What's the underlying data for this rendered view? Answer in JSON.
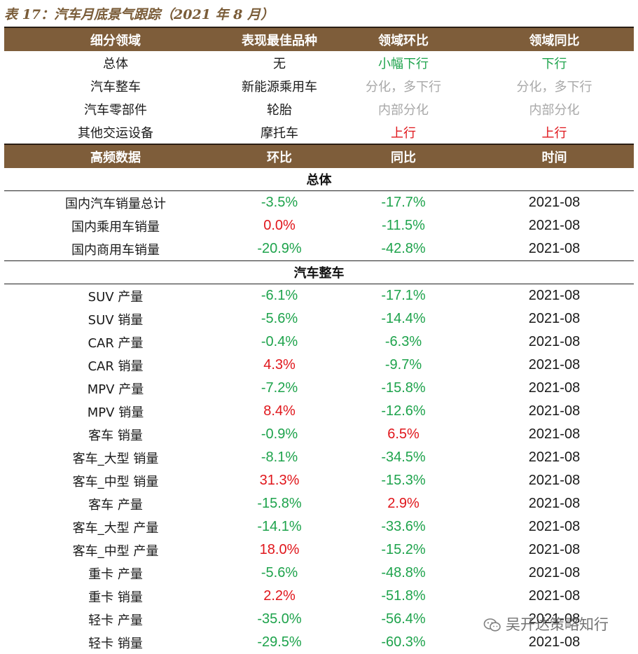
{
  "title": "表 17：汽车月底景气跟踪（2021 年 8 月）",
  "header1": [
    "细分领域",
    "表现最佳品种",
    "领域环比",
    "领域同比"
  ],
  "domains": [
    {
      "name": "总体",
      "best": "无",
      "mom": "小幅下行",
      "mom_color": "green",
      "yoy": "下行",
      "yoy_color": "green"
    },
    {
      "name": "汽车整车",
      "best": "新能源乘用车",
      "mom": "分化，多下行",
      "mom_color": "grey",
      "yoy": "分化，多下行",
      "yoy_color": "grey"
    },
    {
      "name": "汽车零部件",
      "best": "轮胎",
      "mom": "内部分化",
      "mom_color": "grey",
      "yoy": "内部分化",
      "yoy_color": "grey"
    },
    {
      "name": "其他交运设备",
      "best": "摩托车",
      "mom": "上行",
      "mom_color": "red",
      "yoy": "上行",
      "yoy_color": "red"
    }
  ],
  "header2": [
    "高频数据",
    "环比",
    "同比",
    "时间"
  ],
  "sections": [
    {
      "title": "总体",
      "rows": [
        {
          "name": "国内汽车销量总计",
          "mom": "-3.5%",
          "mom_color": "green",
          "yoy": "-17.7%",
          "yoy_color": "green",
          "time": "2021-08"
        },
        {
          "name": "国内乘用车销量",
          "mom": "0.0%",
          "mom_color": "red",
          "yoy": "-11.5%",
          "yoy_color": "green",
          "time": "2021-08"
        },
        {
          "name": "国内商用车销量",
          "mom": "-20.9%",
          "mom_color": "green",
          "yoy": "-42.8%",
          "yoy_color": "green",
          "time": "2021-08"
        }
      ]
    },
    {
      "title": "汽车整车",
      "rows": [
        {
          "name": "SUV 产量",
          "mom": "-6.1%",
          "mom_color": "green",
          "yoy": "-17.1%",
          "yoy_color": "green",
          "time": "2021-08"
        },
        {
          "name": "SUV 销量",
          "mom": "-5.6%",
          "mom_color": "green",
          "yoy": "-14.4%",
          "yoy_color": "green",
          "time": "2021-08"
        },
        {
          "name": "CAR 产量",
          "mom": "-0.4%",
          "mom_color": "green",
          "yoy": "-6.3%",
          "yoy_color": "green",
          "time": "2021-08"
        },
        {
          "name": "CAR 销量",
          "mom": "4.3%",
          "mom_color": "red",
          "yoy": "-9.7%",
          "yoy_color": "green",
          "time": "2021-08"
        },
        {
          "name": "MPV 产量",
          "mom": "-7.2%",
          "mom_color": "green",
          "yoy": "-15.8%",
          "yoy_color": "green",
          "time": "2021-08"
        },
        {
          "name": "MPV 销量",
          "mom": "8.4%",
          "mom_color": "red",
          "yoy": "-12.6%",
          "yoy_color": "green",
          "time": "2021-08"
        },
        {
          "name": "客车 销量",
          "mom": "-0.9%",
          "mom_color": "green",
          "yoy": "6.5%",
          "yoy_color": "red",
          "time": "2021-08"
        },
        {
          "name": "客车_大型 销量",
          "mom": "-8.1%",
          "mom_color": "green",
          "yoy": "-34.5%",
          "yoy_color": "green",
          "time": "2021-08"
        },
        {
          "name": "客车_中型 销量",
          "mom": "31.3%",
          "mom_color": "red",
          "yoy": "-15.3%",
          "yoy_color": "green",
          "time": "2021-08"
        },
        {
          "name": "客车 产量",
          "mom": "-15.8%",
          "mom_color": "green",
          "yoy": "2.9%",
          "yoy_color": "red",
          "time": "2021-08"
        },
        {
          "name": "客车_大型 产量",
          "mom": "-14.1%",
          "mom_color": "green",
          "yoy": "-33.6%",
          "yoy_color": "green",
          "time": "2021-08"
        },
        {
          "name": "客车_中型 产量",
          "mom": "18.0%",
          "mom_color": "red",
          "yoy": "-15.2%",
          "yoy_color": "green",
          "time": "2021-08"
        },
        {
          "name": "重卡 产量",
          "mom": "-5.6%",
          "mom_color": "green",
          "yoy": "-48.8%",
          "yoy_color": "green",
          "time": "2021-08"
        },
        {
          "name": "重卡 销量",
          "mom": "2.2%",
          "mom_color": "red",
          "yoy": "-51.8%",
          "yoy_color": "green",
          "time": "2021-08"
        },
        {
          "name": "轻卡 产量",
          "mom": "-35.0%",
          "mom_color": "green",
          "yoy": "-56.4%",
          "yoy_color": "green",
          "time": "2021-08"
        },
        {
          "name": "轻卡 销量",
          "mom": "-29.5%",
          "mom_color": "green",
          "yoy": "-60.3%",
          "yoy_color": "green",
          "time": "2021-08"
        }
      ]
    }
  ],
  "watermark": {
    "text": "吴开达策略知行",
    "icon": "wechat-icon"
  }
}
